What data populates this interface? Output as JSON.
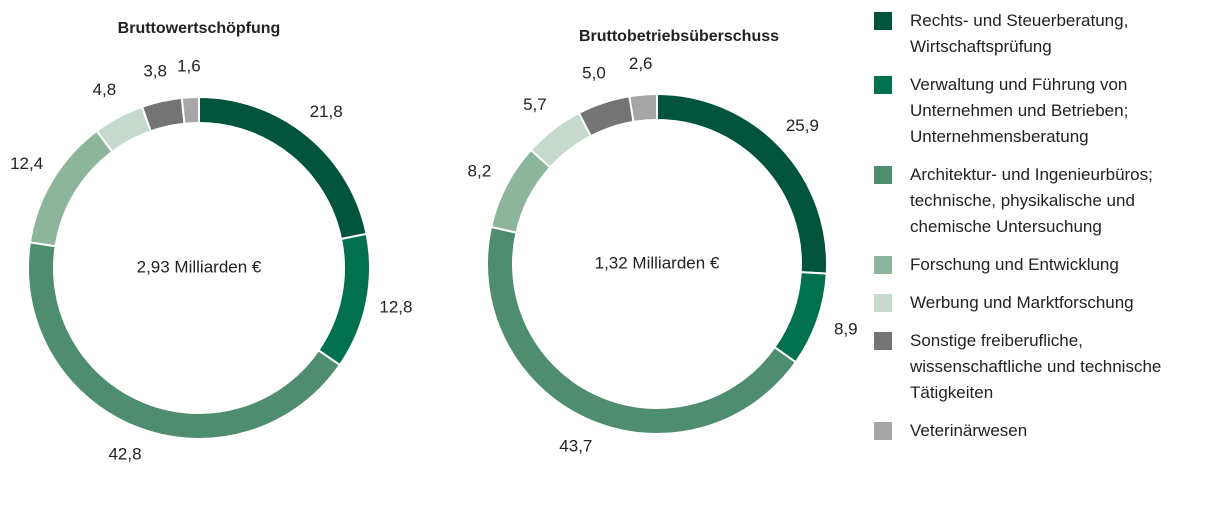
{
  "legend": {
    "labels": [
      "Rechts- und Steuerberatung, Wirtschaftsprüfung",
      "Verwaltung und Führung von Unternehmen und Betrieben; Unternehmensberatung",
      "Architektur- und Ingenieurbüros; technische, physikalische und chemische Untersuchung",
      "Forschung und Entwicklung",
      "Werbung und Marktforschung",
      "Sonstige freiberufliche, wissenschaftliche und technische Tätigkeiten",
      "Veterinärwesen"
    ],
    "colors": [
      "#00543c",
      "#00704f",
      "#4f8d71",
      "#8db59c",
      "#c5dacc",
      "#747474",
      "#a6a6a6"
    ]
  },
  "chart_data": [
    {
      "type": "donut",
      "title": "Bruttowertschöpfung",
      "center_label": "2,93 Milliarden €",
      "values": [
        21.8,
        12.8,
        42.8,
        12.4,
        4.8,
        3.8,
        1.6
      ],
      "value_labels": [
        "21,8",
        "12,8",
        "42,8",
        "12,4",
        "4,8",
        "3,8",
        "1,6"
      ]
    },
    {
      "type": "donut",
      "title": "Bruttobetriebsüberschuss",
      "center_label": "1,32 Milliarden €",
      "values": [
        25.9,
        8.9,
        43.7,
        8.2,
        5.7,
        5.0,
        2.6
      ],
      "value_labels": [
        "25,9",
        "8,9",
        "43,7",
        "8,2",
        "5,7",
        "5,0",
        "2,6"
      ]
    }
  ]
}
